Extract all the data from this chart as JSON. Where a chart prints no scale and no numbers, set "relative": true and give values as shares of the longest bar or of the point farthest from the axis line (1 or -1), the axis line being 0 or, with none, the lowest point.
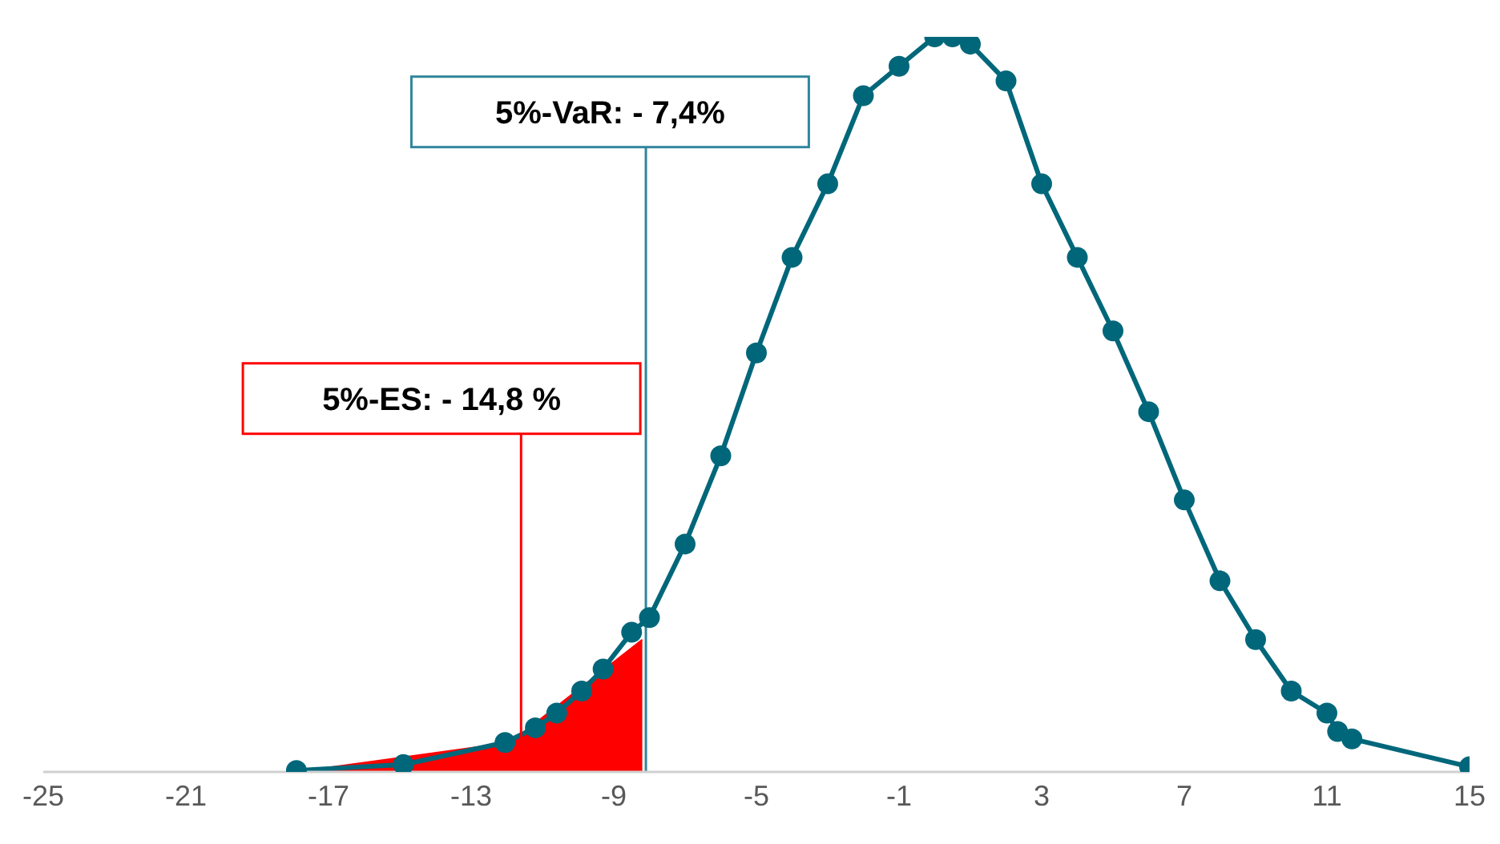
{
  "chart_data": {
    "type": "line",
    "relative": true,
    "xlim": [
      -25,
      15
    ],
    "xticks": [
      -25,
      -21,
      -17,
      -13,
      -9,
      -5,
      -1,
      3,
      7,
      11,
      15
    ],
    "grid": false,
    "line_style": "solid",
    "series": [
      {
        "marker": "circle",
        "color": "#00677a",
        "x": [
          -17.9,
          -14.9,
          -12.05,
          -11.2,
          -10.6,
          -9.9,
          -9.3,
          -8.5,
          -8,
          -7,
          -6,
          -5,
          -4,
          -3,
          -2,
          -1,
          0,
          0.5,
          1,
          2,
          3,
          4,
          5,
          6,
          7,
          8,
          9,
          10,
          11,
          11.3,
          11.7,
          15
        ],
        "values": [
          0.002,
          0.01,
          0.04,
          0.06,
          0.08,
          0.11,
          0.14,
          0.19,
          0.21,
          0.31,
          0.43,
          0.57,
          0.7,
          0.8,
          0.92,
          0.96,
          1,
          1,
          0.99,
          0.94,
          0.8,
          0.7,
          0.6,
          0.49,
          0.37,
          0.26,
          0.18,
          0.11,
          0.08,
          0.055,
          0.045,
          0.007
        ]
      },
      {
        "type": "area",
        "color": "#ff0000",
        "x": [
          -17.9,
          -11.9,
          -8.2
        ],
        "values": [
          0,
          0.04,
          0.18
        ]
      }
    ],
    "ref_lines": [
      {
        "axis": "x",
        "value": -8.1,
        "label": "5%-VaR: - 7,4%",
        "color": "#31859c"
      },
      {
        "axis": "x",
        "value": -11.6,
        "label": "5%-ES: - 14,8 %",
        "color": "#ff0000"
      }
    ]
  }
}
